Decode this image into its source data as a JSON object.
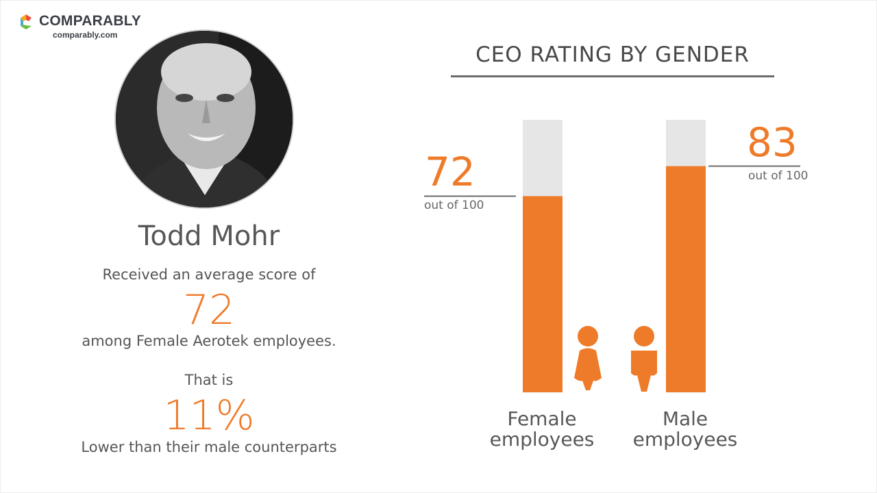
{
  "brand": {
    "name": "COMPARABLY",
    "url": "comparably.com",
    "colors": [
      "#f2a91f",
      "#e94e3c",
      "#4aa8d8",
      "#6cbd45"
    ]
  },
  "person": {
    "name": "Todd Mohr"
  },
  "summary": {
    "line1": "Received an average score of",
    "score": "72",
    "line2": "among Female Aerotek employees.",
    "line3": "That is",
    "difference": "11%",
    "line4": "Lower than their male counterparts"
  },
  "colors": {
    "accent": "#ee7b2a",
    "track": "#e6e6e6",
    "rule": "#6b6b6b"
  },
  "chart_data": {
    "type": "bar",
    "title": "CEO RATING BY GENDER",
    "categories": [
      "Female employees",
      "Male employees"
    ],
    "values": [
      72,
      83
    ],
    "value_labels": [
      "72",
      "83"
    ],
    "value_suffix": "out of 100",
    "ylim": [
      0,
      100
    ],
    "grid": false,
    "icons": [
      "female-person-icon",
      "male-person-icon"
    ]
  }
}
